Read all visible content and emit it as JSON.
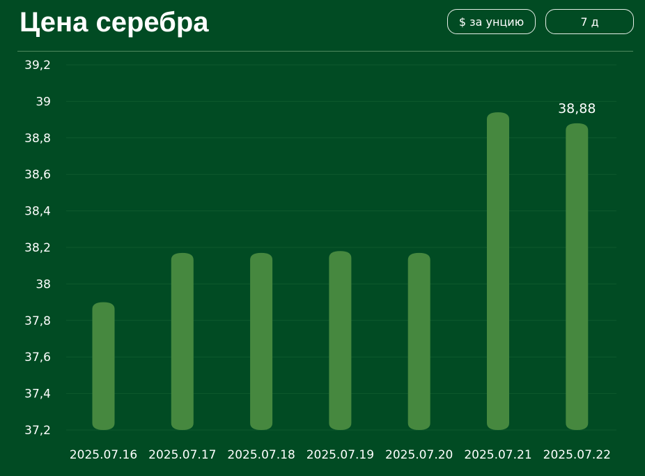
{
  "header": {
    "title": "Цена серебра",
    "unit_button": "$ за унцию",
    "period_button": "7 д"
  },
  "colors": {
    "background": "#014b23",
    "bar": "#46883f",
    "grid": "#0f5a2e"
  },
  "chart_data": {
    "type": "bar",
    "title": "Цена серебра",
    "xlabel": "",
    "ylabel": "",
    "categories": [
      "2025.07.16",
      "2025.07.17",
      "2025.07.18",
      "2025.07.19",
      "2025.07.20",
      "2025.07.21",
      "2025.07.22"
    ],
    "values": [
      37.9,
      38.17,
      38.17,
      38.18,
      38.17,
      38.94,
      38.88
    ],
    "ylim": [
      37.2,
      39.2
    ],
    "yticks": [
      37.2,
      37.4,
      37.6,
      37.8,
      38,
      38.2,
      38.4,
      38.6,
      38.8,
      39,
      39.2
    ],
    "ytick_labels": [
      "37,2",
      "37,4",
      "37,6",
      "37,8",
      "38",
      "38,2",
      "38,4",
      "38,6",
      "38,8",
      "39",
      "39,2"
    ],
    "data_labels": [
      {
        "index": 6,
        "text": "38,88"
      }
    ],
    "grid": true,
    "legend": "none"
  }
}
